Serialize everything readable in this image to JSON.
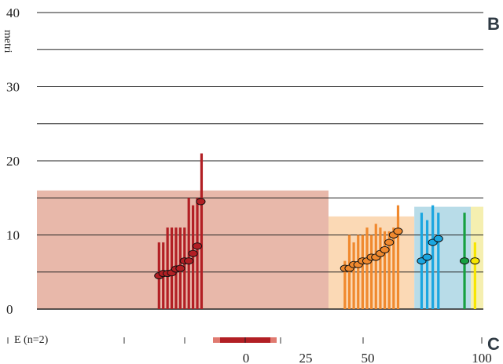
{
  "chart_data": {
    "type": "bar",
    "ylabel": "metri",
    "ylim": [
      0,
      40
    ],
    "yticks": [
      "0",
      "10",
      "20",
      "30",
      "40"
    ],
    "grid": true,
    "panel_labels": {
      "top": "B",
      "bottom": "C"
    },
    "background_zones": [
      {
        "from": 0,
        "to": 83.6,
        "height": 16,
        "color": "#e8b8aa"
      },
      {
        "from": 83.6,
        "to": 108.2,
        "height": 12.5,
        "color": "#fbd9b5"
      },
      {
        "from": 108.2,
        "to": 124.4,
        "height": 13.8,
        "color": "#b8dce8"
      },
      {
        "from": 124.4,
        "to": 128,
        "height": 13.8,
        "color": "#f5efb0"
      }
    ],
    "groups": [
      {
        "color": "#b21f24",
        "marker_color": "#b21f24",
        "bars": [
          9,
          9,
          11,
          11,
          11,
          11,
          11,
          15,
          14,
          15,
          21
        ],
        "points": [
          4.5,
          4.8,
          4.8,
          4.9,
          5.4,
          5.5,
          6.5,
          6.5,
          7.5,
          8.5,
          14.5
        ]
      },
      {
        "color": "#f0892e",
        "marker_color": "#f0892e",
        "bars": [
          6.5,
          10,
          9,
          10,
          10,
          11,
          10,
          11.5,
          11,
          10.5,
          10.5,
          11,
          14
        ],
        "points": [
          5.5,
          5.5,
          6,
          6,
          6.5,
          6.5,
          7,
          7,
          7.5,
          8,
          9,
          10,
          10.5
        ]
      },
      {
        "color": "#1ba6e0",
        "marker_color": "#1ba6e0",
        "bars": [
          13,
          12,
          14,
          13
        ],
        "points": [
          6.5,
          7,
          9,
          9.5
        ]
      },
      {
        "color": "#17a041",
        "marker_color": "#17a041",
        "bars": [
          13
        ],
        "points": [
          6.5
        ]
      },
      {
        "color": "#f7e600",
        "marker_color": "#f7e600",
        "bars": [
          9
        ],
        "points": [
          6.5
        ]
      }
    ],
    "scale_bar": {
      "legend": "E (n=2)",
      "ticks": [
        "0",
        "25",
        "50",
        "100"
      ],
      "range_color": "#b21f24",
      "whisker_color": "#e07a70"
    }
  }
}
